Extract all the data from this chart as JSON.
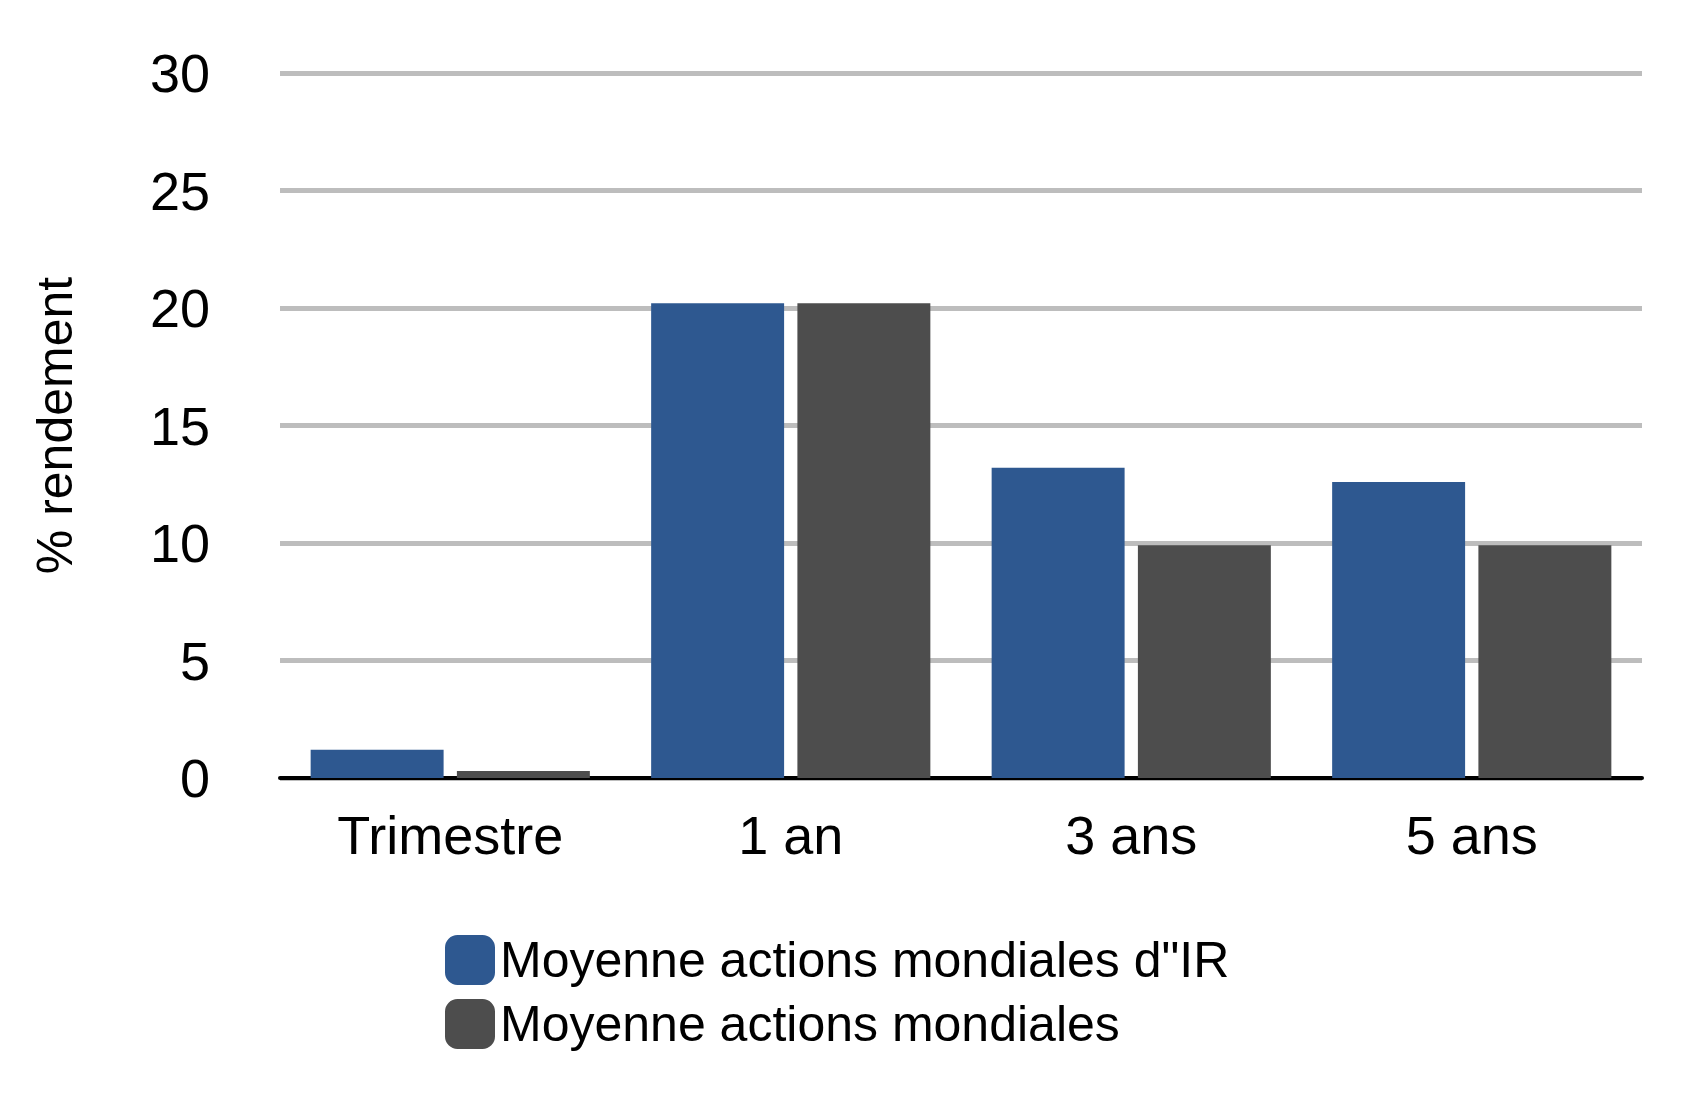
{
  "chart_data": {
    "type": "bar",
    "ylabel": "% rendement",
    "categories": [
      "Trimestre",
      "1 an",
      "3 ans",
      "5 ans"
    ],
    "series": [
      {
        "name": "Moyenne actions mondiales d\"IR",
        "color": "#2e5890",
        "values": [
          1.2,
          20.2,
          13.2,
          12.6
        ]
      },
      {
        "name": "Moyenne actions mondiales",
        "color": "#4d4d4d",
        "values": [
          0.3,
          20.2,
          9.9,
          9.9
        ]
      }
    ],
    "ylim": [
      0,
      30
    ],
    "yticks": [
      0,
      5,
      10,
      15,
      20,
      25,
      30
    ],
    "grid": "y",
    "legend": "bottom"
  }
}
